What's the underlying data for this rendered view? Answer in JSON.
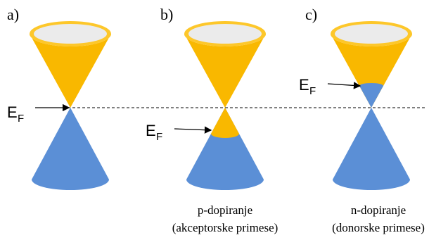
{
  "panels": [
    {
      "label": "a)",
      "ef": {
        "main": "E",
        "sub": "F"
      }
    },
    {
      "label": "b)",
      "ef": {
        "main": "E",
        "sub": "F"
      },
      "caption": [
        "p-dopiranje",
        "(akceptorske primese)"
      ]
    },
    {
      "label": "c)",
      "ef": {
        "main": "E",
        "sub": "F"
      },
      "caption": [
        "n-dopiranje",
        "(donorske primese)"
      ]
    }
  ]
}
